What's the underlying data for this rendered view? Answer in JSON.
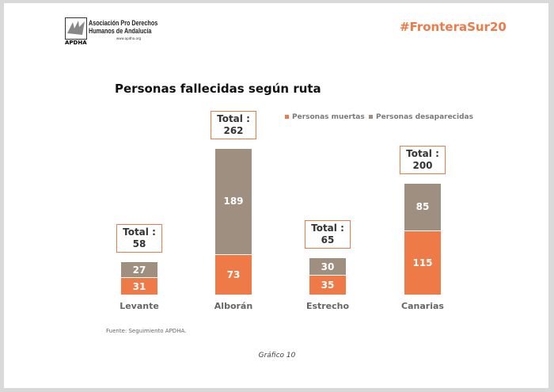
{
  "header": {
    "hashtag": "#FronteraSur20",
    "logo": {
      "line1": "Asociación Pro Derechos",
      "line2": "Humanos de Andalucía",
      "url": "www.apdha.org",
      "acronym": "APDHA"
    }
  },
  "chart_data": {
    "type": "bar",
    "stacked": true,
    "title": "Personas fallecidas según ruta",
    "categories": [
      "Levante",
      "Alborán",
      "Estrecho",
      "Canarias"
    ],
    "series": [
      {
        "name": "Personas muertas",
        "values": [
          31,
          73,
          35,
          115
        ],
        "color": "#ee7a48"
      },
      {
        "name": "Personas desaparecidas",
        "values": [
          27,
          189,
          30,
          85
        ],
        "color": "#9e8f80"
      }
    ],
    "totals": [
      58,
      262,
      65,
      200
    ],
    "total_label": "Total :",
    "legend_position": "top-right",
    "grid": false
  },
  "footer": {
    "source": "Fuente: Seguimiento APDHA.",
    "caption": "Gráfico 10"
  }
}
